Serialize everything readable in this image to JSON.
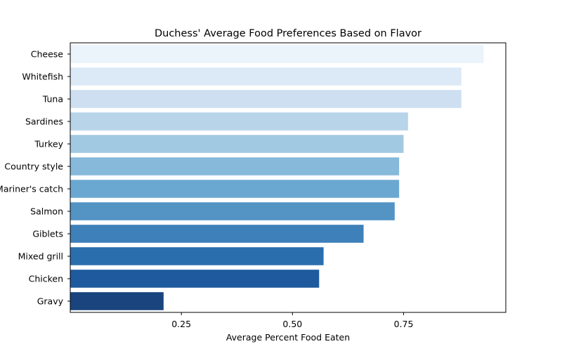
{
  "chart_data": {
    "type": "bar",
    "orientation": "horizontal",
    "title": "Duchess' Average Food Preferences Based on Flavor",
    "xlabel": "Average Percent Food Eaten",
    "ylabel": "",
    "xlim": [
      0.0,
      0.98
    ],
    "xticks": [
      0.25,
      0.5,
      0.75
    ],
    "xtick_labels": [
      "0.25",
      "0.50",
      "0.75"
    ],
    "grid": false,
    "categories": [
      "Cheese",
      "Whitefish",
      "Tuna",
      "Sardines",
      "Turkey",
      "Country style",
      "Mariner's catch",
      "Salmon",
      "Giblets",
      "Mixed grill",
      "Chicken",
      "Gravy"
    ],
    "values": [
      0.93,
      0.88,
      0.88,
      0.76,
      0.75,
      0.74,
      0.74,
      0.73,
      0.66,
      0.57,
      0.56,
      0.21
    ],
    "colors": [
      "#ebf3fb",
      "#dce9f6",
      "#cddff1",
      "#b7d4e9",
      "#a1c9e1",
      "#86b9da",
      "#6ba8d1",
      "#5394c5",
      "#3e80b9",
      "#2b6ead",
      "#1f5a9e",
      "#19447e"
    ]
  }
}
